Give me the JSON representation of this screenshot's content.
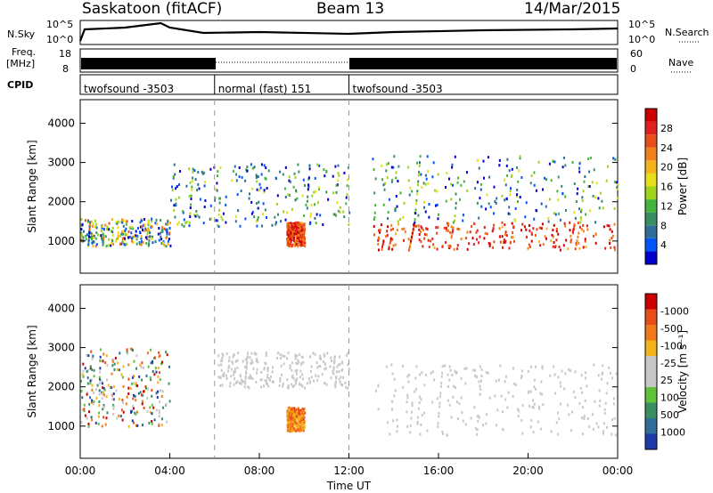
{
  "header": {
    "radar": "Saskatoon (fitACF)",
    "beam": "Beam 13",
    "date": "14/Mar/2015"
  },
  "left_labels": {
    "nsky": "N.Sky",
    "freq_top": "Freq.",
    "freq_unit": "[MHz]",
    "cpid": "CPID"
  },
  "right_labels": {
    "nsearch": "N.Search",
    "nave": "Nave"
  },
  "chart_data": [
    {
      "type": "line",
      "panel": "noise",
      "left_axis_ticks": [
        "10^5",
        "10^0"
      ],
      "right_axis_ticks": [
        "10^5",
        "10^0"
      ],
      "series": [
        {
          "name": "N.Sky",
          "style": "solid"
        },
        {
          "name": "N.Search",
          "style": "dotted"
        }
      ]
    },
    {
      "type": "line",
      "panel": "frequency_nave",
      "left_axis_ticks": [
        "18",
        "8"
      ],
      "right_axis_ticks": [
        "60",
        "0"
      ],
      "series": [
        {
          "name": "Freq.",
          "style": "solid"
        },
        {
          "name": "Nave",
          "style": "dotted"
        }
      ]
    },
    {
      "type": "table",
      "panel": "cpid",
      "segments": [
        {
          "label": "twofsound -3503",
          "start": "00:00",
          "end": "06:00"
        },
        {
          "label": "normal (fast) 151",
          "start": "06:00",
          "end": "12:00"
        },
        {
          "label": "twofsound -3503",
          "start": "12:00",
          "end": "24:00"
        }
      ]
    },
    {
      "type": "heatmap",
      "panel": "power",
      "ylabel": "Slant Range [km]",
      "yticks": [
        1000,
        2000,
        3000,
        4000
      ],
      "ylim": [
        180,
        4600
      ],
      "colorbar_label": "Power [dB]",
      "colorbar_ticks": [
        4,
        8,
        12,
        16,
        20,
        24,
        28
      ],
      "colorbar_colors": [
        "#0000cc",
        "#0055ff",
        "#2f6e9a",
        "#3a8f62",
        "#44b53a",
        "#9ed41c",
        "#e6e01b",
        "#f5b31a",
        "#f0801a",
        "#e94d1a",
        "#e01f1f",
        "#cc0000"
      ],
      "scatter_bands": [
        {
          "range_km": [
            900,
            1600
          ],
          "time_h": [
            0,
            4
          ],
          "level": "mid"
        },
        {
          "range_km": [
            1400,
            3000
          ],
          "time_h": [
            4,
            12
          ],
          "level": "low-mid"
        },
        {
          "range_km": [
            900,
            1500
          ],
          "time_h": [
            9.2,
            10
          ],
          "level": "high"
        },
        {
          "range_km": [
            800,
            1500
          ],
          "time_h": [
            13,
            24
          ],
          "level": "high"
        },
        {
          "range_km": [
            1500,
            3200
          ],
          "time_h": [
            13,
            24
          ],
          "level": "low-mid"
        }
      ]
    },
    {
      "type": "heatmap",
      "panel": "velocity",
      "ylabel": "Slant Range [km]",
      "yticks": [
        1000,
        2000,
        3000,
        4000
      ],
      "ylim": [
        180,
        4600
      ],
      "xlabel": "Time UT",
      "xticks": [
        "00:00",
        "04:00",
        "08:00",
        "12:00",
        "16:00",
        "20:00",
        "00:00"
      ],
      "xlim_hours": [
        0,
        24
      ],
      "vertical_dashed_at_hours": [
        6,
        12
      ],
      "colorbar_label": "Velocity [m s⁻¹]",
      "colorbar_ticks": [
        1000,
        500,
        100,
        25,
        -25,
        -100,
        -500,
        -1000
      ],
      "colorbar_colors": [
        "#1f3aa8",
        "#2f6e9a",
        "#3a8f62",
        "#5fc23a",
        "#c8c8c8",
        "#c8c8c8",
        "#f5b31a",
        "#f07a1a",
        "#e94d1a",
        "#cc0000"
      ],
      "scatter_bands": [
        {
          "range_km": [
            1000,
            3000
          ],
          "time_h": [
            0,
            4
          ],
          "level": "mixed"
        },
        {
          "range_km": [
            2000,
            2900
          ],
          "time_h": [
            6,
            12
          ],
          "level": "near-zero"
        },
        {
          "range_km": [
            900,
            1500
          ],
          "time_h": [
            9.2,
            10
          ],
          "level": "negative"
        },
        {
          "range_km": [
            800,
            2600
          ],
          "time_h": [
            13,
            24
          ],
          "level": "near-zero"
        }
      ]
    }
  ]
}
